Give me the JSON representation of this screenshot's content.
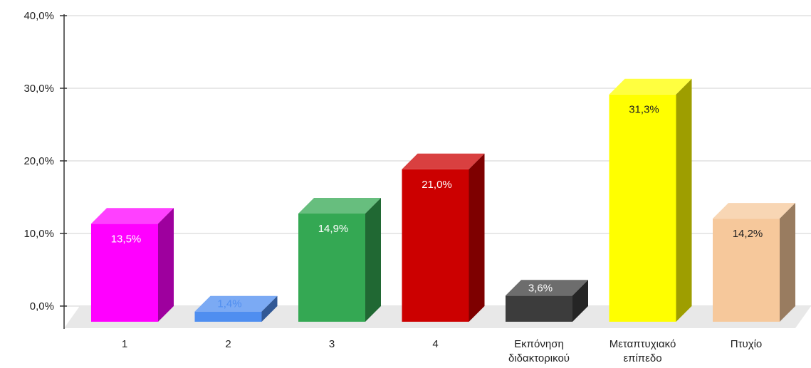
{
  "chart_data": {
    "type": "bar",
    "categories": [
      [
        "1"
      ],
      [
        "2"
      ],
      [
        "3"
      ],
      [
        "4"
      ],
      [
        "Εκπόνηση",
        "διδακτορικού"
      ],
      [
        "Μεταπτυχιακό",
        "επίπεδο"
      ],
      [
        "Πτυχίο"
      ]
    ],
    "values": [
      13.5,
      1.4,
      14.9,
      21.0,
      3.6,
      31.3,
      14.2
    ],
    "data_labels": [
      "13,5%",
      "1,4%",
      "14,9%",
      "21,0%",
      "3,6%",
      "31,3%",
      "14,2%"
    ],
    "colors": [
      "#ff00ff",
      "#4f8ef0",
      "#34a853",
      "#cc0000",
      "#3c3c3c",
      "#ffff00",
      "#f6c89b"
    ],
    "label_colors": [
      "#ffffff",
      "#4f8ef0",
      "#ffffff",
      "#ffffff",
      "#ffffff",
      "#222222",
      "#222222"
    ],
    "y_ticks": [
      0,
      10,
      20,
      30,
      40
    ],
    "y_tick_labels": [
      "0,0%",
      "10,0%",
      "20,0%",
      "30,0%",
      "40,0%"
    ],
    "ylim": [
      0,
      40
    ],
    "grid": true,
    "style": "3d-bar",
    "title": "",
    "xlabel": "",
    "ylabel": ""
  }
}
